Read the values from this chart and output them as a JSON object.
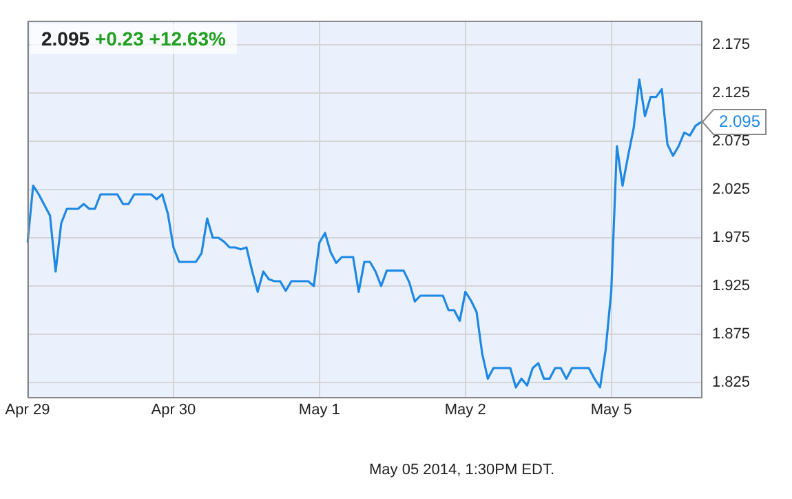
{
  "chart_data": {
    "type": "line",
    "title": "2.095 +0.23 +12.63%",
    "categories": [
      "Apr 29",
      null,
      null,
      null,
      null,
      null,
      null,
      null,
      null,
      null,
      null,
      null,
      null,
      null,
      null,
      null,
      null,
      null,
      null,
      null,
      null,
      null,
      null,
      null,
      null,
      null,
      "Apr 30",
      null,
      null,
      null,
      null,
      null,
      null,
      null,
      null,
      null,
      null,
      null,
      null,
      null,
      null,
      null,
      null,
      null,
      null,
      null,
      null,
      null,
      null,
      null,
      null,
      null,
      "May 1",
      null,
      null,
      null,
      null,
      null,
      null,
      null,
      null,
      null,
      null,
      null,
      null,
      null,
      null,
      null,
      null,
      null,
      null,
      null,
      null,
      null,
      null,
      null,
      null,
      null,
      "May 2",
      null,
      null,
      null,
      null,
      null,
      null,
      null,
      null,
      null,
      null,
      null,
      null,
      null,
      null,
      null,
      null,
      null,
      null,
      null,
      null,
      null,
      null,
      null,
      null,
      null,
      "May 5",
      null,
      null,
      null,
      null,
      null,
      null,
      null,
      null,
      null,
      null,
      null,
      null,
      null,
      null,
      null,
      null
    ],
    "series": [
      {
        "color": "#1e88e5",
        "values": [
          1.97,
          2.029,
          2.02,
          2.009,
          1.998,
          1.94,
          1.99,
          2.005,
          2.005,
          2.005,
          2.01,
          2.005,
          2.005,
          2.02,
          2.02,
          2.02,
          2.02,
          2.01,
          2.01,
          2.02,
          2.02,
          2.02,
          2.02,
          2.015,
          2.02,
          2.0,
          1.965,
          1.95,
          1.95,
          1.95,
          1.95,
          1.959,
          1.995,
          1.975,
          1.975,
          1.971,
          1.965,
          1.965,
          1.963,
          1.965,
          1.941,
          1.919,
          1.94,
          1.932,
          1.93,
          1.93,
          1.92,
          1.93,
          1.93,
          1.93,
          1.93,
          1.925,
          1.97,
          1.98,
          1.96,
          1.949,
          1.955,
          1.955,
          1.955,
          1.919,
          1.95,
          1.95,
          1.94,
          1.925,
          1.941,
          1.941,
          1.941,
          1.941,
          1.929,
          1.909,
          1.915,
          1.915,
          1.915,
          1.915,
          1.915,
          1.9,
          1.9,
          1.889,
          1.919,
          1.91,
          1.898,
          1.855,
          1.829,
          1.84,
          1.84,
          1.84,
          1.84,
          1.82,
          1.829,
          1.822,
          1.84,
          1.845,
          1.829,
          1.829,
          1.84,
          1.84,
          1.829,
          1.84,
          1.84,
          1.84,
          1.84,
          1.829,
          1.82,
          1.859,
          1.92,
          2.07,
          2.029,
          2.06,
          2.089,
          2.139,
          2.101,
          2.121,
          2.121,
          2.129,
          2.072,
          2.06,
          2.07,
          2.084,
          2.081,
          2.091,
          2.095
        ]
      }
    ],
    "ylim": [
      1.81,
      2.2
    ],
    "yticks": [
      1.825,
      1.875,
      1.925,
      1.975,
      2.025,
      2.075,
      2.125,
      2.175
    ],
    "grid": true,
    "legend": false,
    "marker": "none",
    "line_style": "solid",
    "annotations": [
      "2.095",
      "May 05 2014, 1:30PM EDT."
    ]
  }
}
